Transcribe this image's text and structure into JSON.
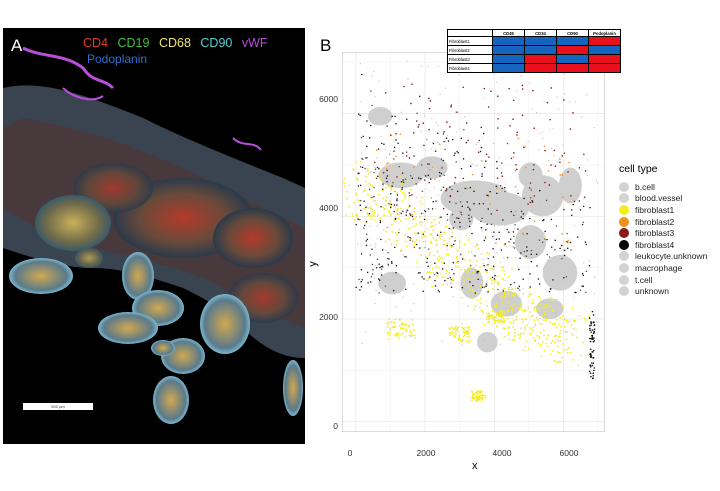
{
  "panel_a": {
    "letter": "A",
    "markers": [
      {
        "name": "CD4",
        "color": "#e8372a"
      },
      {
        "name": "CD19",
        "color": "#3fbf3f"
      },
      {
        "name": "CD68",
        "color": "#f2e56b"
      },
      {
        "name": "CD90",
        "color": "#4fd2d2"
      },
      {
        "name": "vWF",
        "color": "#b84fd8"
      }
    ],
    "marker_second_line": {
      "name": "Podoplanin",
      "color": "#2f6fcf"
    },
    "scale_bar_label": "500 µm"
  },
  "panel_b": {
    "letter": "B",
    "heat_table": {
      "columns": [
        "CD45",
        "CD34",
        "CD90",
        "Podoplanin"
      ],
      "rows": [
        {
          "label": "Fibroblast1",
          "cells": [
            "blue",
            "blue",
            "blue",
            "red"
          ]
        },
        {
          "label": "Fibroblast2",
          "cells": [
            "blue",
            "blue",
            "red",
            "blue"
          ]
        },
        {
          "label": "Fibroblast3",
          "cells": [
            "blue",
            "red",
            "blue",
            "red"
          ]
        },
        {
          "label": "Fibroblast4",
          "cells": [
            "blue",
            "red",
            "red",
            "red"
          ]
        }
      ],
      "colors": {
        "blue": "#1565c0",
        "red": "#e8101a"
      }
    },
    "legend": {
      "title": "cell type",
      "items": [
        {
          "label": "b.cell",
          "color": "#d3d3d3"
        },
        {
          "label": "blood.vessel",
          "color": "#d3d3d3"
        },
        {
          "label": "fibroblast1",
          "color": "#f5ec1e"
        },
        {
          "label": "fibroblast2",
          "color": "#f1911b"
        },
        {
          "label": "fibroblast3",
          "color": "#8b1a1a"
        },
        {
          "label": "fibroblast4",
          "color": "#000000"
        },
        {
          "label": "leukocyte.unknown",
          "color": "#d3d3d3"
        },
        {
          "label": "macrophage",
          "color": "#d3d3d3"
        },
        {
          "label": "t.cell",
          "color": "#d3d3d3"
        },
        {
          "label": "unknown",
          "color": "#d3d3d3"
        }
      ]
    }
  },
  "chart_data": {
    "type": "scatter",
    "xlabel": "x",
    "ylabel": "y",
    "xlim": [
      -400,
      7200
    ],
    "ylim": [
      -200,
      7200
    ],
    "x_ticks": [
      "0",
      "2000",
      "4000",
      "6000"
    ],
    "x_tick_values": [
      0,
      2000,
      4000,
      6000
    ],
    "y_ticks": [
      "0",
      "2000",
      "4000",
      "6000"
    ],
    "y_tick_values": [
      0,
      2000,
      4000,
      6000
    ],
    "grid": true,
    "legend_placement": "right",
    "series": [
      {
        "name": "b.cell",
        "color": "#d3d3d3"
      },
      {
        "name": "blood.vessel",
        "color": "#d3d3d3"
      },
      {
        "name": "fibroblast1",
        "color": "#f5ec1e"
      },
      {
        "name": "fibroblast2",
        "color": "#f1911b"
      },
      {
        "name": "fibroblast3",
        "color": "#8b1a1a"
      },
      {
        "name": "fibroblast4",
        "color": "#000000"
      },
      {
        "name": "leukocyte.unknown",
        "color": "#d3d3d3"
      },
      {
        "name": "macrophage",
        "color": "#d3d3d3"
      },
      {
        "name": "t.cell",
        "color": "#d3d3d3"
      },
      {
        "name": "unknown",
        "color": "#d3d3d3"
      }
    ]
  }
}
